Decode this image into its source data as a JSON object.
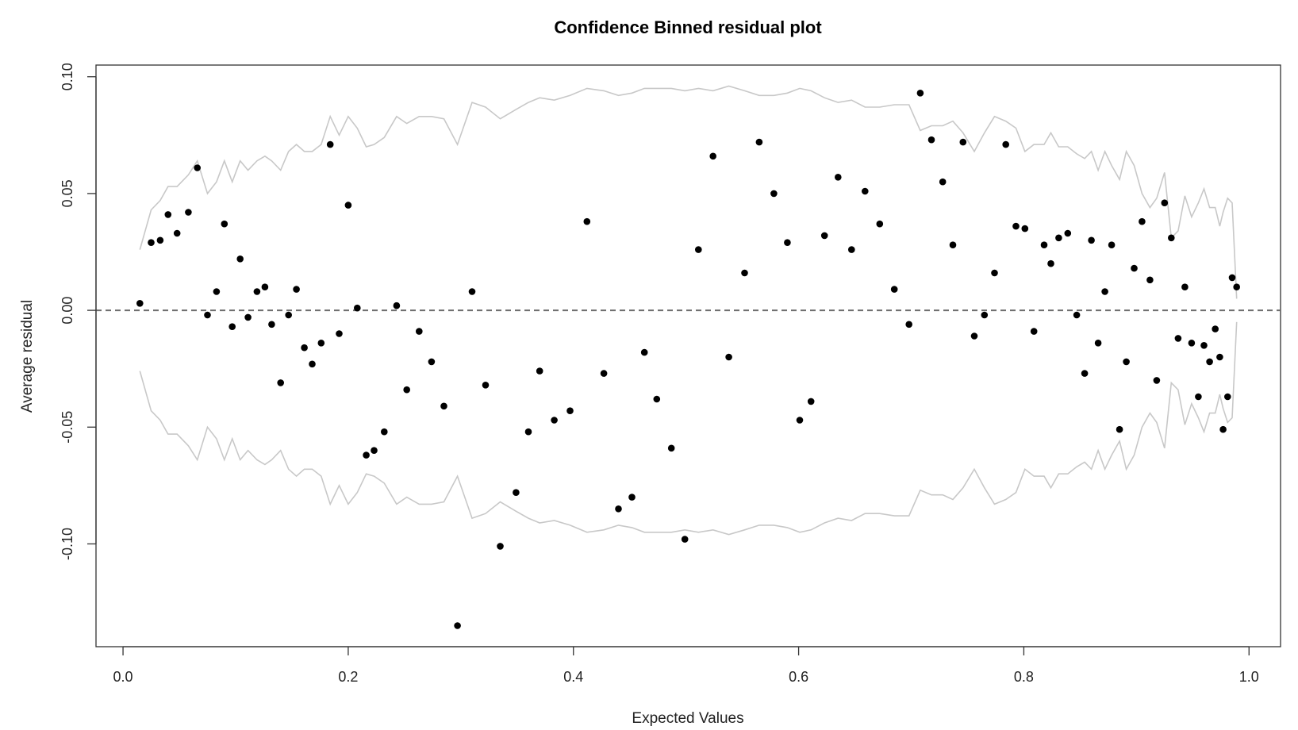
{
  "chart_data": {
    "type": "scatter",
    "title": "Confidence Binned residual plot",
    "xlabel": "Expected Values",
    "ylabel": "Average residual",
    "xlim": [
      -0.024,
      1.028
    ],
    "ylim": [
      -0.144,
      0.105
    ],
    "x_ticks": [
      0.0,
      0.2,
      0.4,
      0.6,
      0.8,
      1.0
    ],
    "x_tick_labels": [
      "0.0",
      "0.2",
      "0.4",
      "0.6",
      "0.8",
      "1.0"
    ],
    "y_ticks": [
      -0.1,
      -0.05,
      0.0,
      0.05,
      0.1
    ],
    "y_tick_labels": [
      "-0.10",
      "-0.05",
      "0.00",
      "0.05",
      "0.10"
    ],
    "reference_line": {
      "y": 0.0,
      "style": "dashed"
    },
    "grid": false,
    "colors": {
      "points": "#000000",
      "bounds": "#c8c8c8",
      "reference": "#6e6e6e",
      "frame": "#333333"
    },
    "points": {
      "x": [
        0.015,
        0.025,
        0.033,
        0.04,
        0.048,
        0.058,
        0.066,
        0.075,
        0.083,
        0.09,
        0.097,
        0.104,
        0.111,
        0.119,
        0.126,
        0.132,
        0.14,
        0.147,
        0.154,
        0.161,
        0.168,
        0.176,
        0.184,
        0.192,
        0.2,
        0.208,
        0.216,
        0.223,
        0.232,
        0.243,
        0.252,
        0.263,
        0.274,
        0.285,
        0.297,
        0.31,
        0.322,
        0.335,
        0.349,
        0.36,
        0.37,
        0.383,
        0.397,
        0.412,
        0.427,
        0.44,
        0.452,
        0.463,
        0.474,
        0.487,
        0.499,
        0.511,
        0.524,
        0.538,
        0.552,
        0.565,
        0.578,
        0.59,
        0.601,
        0.611,
        0.623,
        0.635,
        0.647,
        0.659,
        0.672,
        0.685,
        0.698,
        0.708,
        0.718,
        0.728,
        0.737,
        0.746,
        0.756,
        0.765,
        0.774,
        0.784,
        0.793,
        0.801,
        0.809,
        0.818,
        0.824,
        0.831,
        0.839,
        0.847,
        0.854,
        0.86,
        0.866,
        0.872,
        0.878,
        0.885,
        0.891,
        0.898,
        0.905,
        0.912,
        0.918,
        0.925,
        0.931,
        0.937,
        0.943,
        0.949,
        0.955,
        0.96,
        0.965,
        0.97,
        0.974,
        0.977,
        0.981,
        0.985,
        0.989
      ],
      "y": [
        0.003,
        0.029,
        0.03,
        0.041,
        0.033,
        0.042,
        0.061,
        -0.002,
        0.008,
        0.037,
        -0.007,
        0.022,
        -0.003,
        0.008,
        0.01,
        -0.006,
        -0.031,
        -0.002,
        0.009,
        -0.016,
        -0.023,
        -0.014,
        0.071,
        -0.01,
        0.045,
        0.001,
        -0.062,
        -0.06,
        -0.052,
        0.002,
        -0.034,
        -0.009,
        -0.022,
        -0.041,
        -0.135,
        0.008,
        -0.032,
        -0.101,
        -0.078,
        -0.052,
        -0.026,
        -0.047,
        -0.043,
        0.038,
        -0.027,
        -0.085,
        -0.08,
        -0.018,
        -0.038,
        -0.059,
        -0.098,
        0.026,
        0.066,
        -0.02,
        0.016,
        0.072,
        0.05,
        0.029,
        -0.047,
        -0.039,
        0.032,
        0.057,
        0.026,
        0.051,
        0.037,
        0.009,
        -0.006,
        0.093,
        0.073,
        0.055,
        0.028,
        0.072,
        -0.011,
        -0.002,
        0.016,
        0.071,
        0.036,
        0.035,
        -0.009,
        0.028,
        0.02,
        0.031,
        0.033,
        -0.002,
        -0.027,
        0.03,
        -0.014,
        0.008,
        0.028,
        -0.051,
        -0.022,
        0.018,
        0.038,
        0.013,
        -0.03,
        0.046,
        0.031,
        -0.012,
        0.01,
        -0.014,
        -0.037,
        -0.015,
        -0.022,
        -0.008,
        -0.02,
        -0.051,
        -0.037,
        0.014,
        0.01
      ]
    },
    "bounds": {
      "x": [
        0.015,
        0.025,
        0.033,
        0.04,
        0.048,
        0.058,
        0.066,
        0.075,
        0.083,
        0.09,
        0.097,
        0.104,
        0.111,
        0.119,
        0.126,
        0.132,
        0.14,
        0.147,
        0.154,
        0.161,
        0.168,
        0.176,
        0.184,
        0.192,
        0.2,
        0.208,
        0.216,
        0.223,
        0.232,
        0.243,
        0.252,
        0.263,
        0.274,
        0.285,
        0.297,
        0.31,
        0.322,
        0.335,
        0.349,
        0.36,
        0.37,
        0.383,
        0.397,
        0.412,
        0.427,
        0.44,
        0.452,
        0.463,
        0.474,
        0.487,
        0.499,
        0.511,
        0.524,
        0.538,
        0.552,
        0.565,
        0.578,
        0.59,
        0.601,
        0.611,
        0.623,
        0.635,
        0.647,
        0.659,
        0.672,
        0.685,
        0.698,
        0.708,
        0.718,
        0.728,
        0.737,
        0.746,
        0.756,
        0.765,
        0.774,
        0.784,
        0.793,
        0.801,
        0.809,
        0.818,
        0.824,
        0.831,
        0.839,
        0.847,
        0.854,
        0.86,
        0.866,
        0.872,
        0.878,
        0.885,
        0.891,
        0.898,
        0.905,
        0.912,
        0.918,
        0.925,
        0.931,
        0.937,
        0.943,
        0.949,
        0.955,
        0.96,
        0.965,
        0.97,
        0.974,
        0.977,
        0.981,
        0.985,
        0.989
      ],
      "upper": [
        0.026,
        0.043,
        0.047,
        0.053,
        0.053,
        0.058,
        0.064,
        0.05,
        0.055,
        0.064,
        0.055,
        0.064,
        0.06,
        0.064,
        0.066,
        0.064,
        0.06,
        0.068,
        0.071,
        0.068,
        0.068,
        0.071,
        0.083,
        0.075,
        0.083,
        0.078,
        0.07,
        0.071,
        0.074,
        0.083,
        0.08,
        0.083,
        0.083,
        0.082,
        0.071,
        0.089,
        0.087,
        0.082,
        0.086,
        0.089,
        0.091,
        0.09,
        0.092,
        0.095,
        0.094,
        0.092,
        0.093,
        0.095,
        0.095,
        0.095,
        0.094,
        0.095,
        0.094,
        0.096,
        0.094,
        0.092,
        0.092,
        0.093,
        0.095,
        0.094,
        0.091,
        0.089,
        0.09,
        0.087,
        0.087,
        0.088,
        0.088,
        0.077,
        0.079,
        0.079,
        0.081,
        0.076,
        0.068,
        0.076,
        0.083,
        0.081,
        0.078,
        0.068,
        0.071,
        0.071,
        0.076,
        0.07,
        0.07,
        0.067,
        0.065,
        0.068,
        0.06,
        0.068,
        0.062,
        0.056,
        0.068,
        0.062,
        0.05,
        0.044,
        0.048,
        0.059,
        0.031,
        0.034,
        0.049,
        0.04,
        0.046,
        0.052,
        0.044,
        0.044,
        0.036,
        0.042,
        0.048,
        0.046,
        0.005
      ],
      "lower": [
        -0.026,
        -0.043,
        -0.047,
        -0.053,
        -0.053,
        -0.058,
        -0.064,
        -0.05,
        -0.055,
        -0.064,
        -0.055,
        -0.064,
        -0.06,
        -0.064,
        -0.066,
        -0.064,
        -0.06,
        -0.068,
        -0.071,
        -0.068,
        -0.068,
        -0.071,
        -0.083,
        -0.075,
        -0.083,
        -0.078,
        -0.07,
        -0.071,
        -0.074,
        -0.083,
        -0.08,
        -0.083,
        -0.083,
        -0.082,
        -0.071,
        -0.089,
        -0.087,
        -0.082,
        -0.086,
        -0.089,
        -0.091,
        -0.09,
        -0.092,
        -0.095,
        -0.094,
        -0.092,
        -0.093,
        -0.095,
        -0.095,
        -0.095,
        -0.094,
        -0.095,
        -0.094,
        -0.096,
        -0.094,
        -0.092,
        -0.092,
        -0.093,
        -0.095,
        -0.094,
        -0.091,
        -0.089,
        -0.09,
        -0.087,
        -0.087,
        -0.088,
        -0.088,
        -0.077,
        -0.079,
        -0.079,
        -0.081,
        -0.076,
        -0.068,
        -0.076,
        -0.083,
        -0.081,
        -0.078,
        -0.068,
        -0.071,
        -0.071,
        -0.076,
        -0.07,
        -0.07,
        -0.067,
        -0.065,
        -0.068,
        -0.06,
        -0.068,
        -0.062,
        -0.056,
        -0.068,
        -0.062,
        -0.05,
        -0.044,
        -0.048,
        -0.059,
        -0.031,
        -0.034,
        -0.049,
        -0.04,
        -0.046,
        -0.052,
        -0.044,
        -0.044,
        -0.036,
        -0.042,
        -0.048,
        -0.046,
        -0.005
      ]
    }
  }
}
